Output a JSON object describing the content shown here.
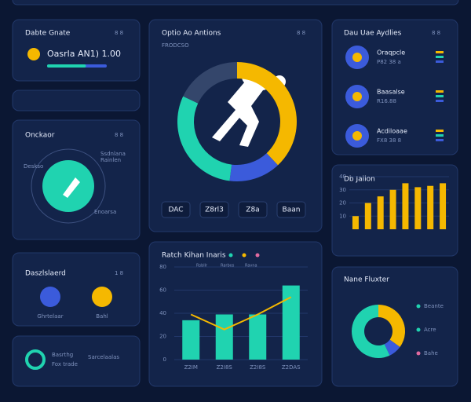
{
  "top_card": {
    "title": "Dabte Gnate",
    "code": "8 8",
    "value": "Oasrla AN1) 1.00",
    "progress": 65
  },
  "orbit_card": {
    "title": "Onckaor",
    "code": "8 8",
    "labels": [
      "Deskso",
      "Ssdnlana",
      "Rainlen",
      "Enoarsa"
    ]
  },
  "icons_card": {
    "title": "Daszlslaerd",
    "code": "1 8",
    "items": [
      "Ghrtelaar",
      "Bahl"
    ]
  },
  "footer_card": {
    "title": "Basrthg",
    "subtitle": "Fox trade",
    "tag": "Sarcelaalas"
  },
  "activity": {
    "title": "Optio Ao Antions",
    "subtitle": "FRODCSO",
    "code": "8 8",
    "segments": [
      {
        "color": "#f5b800",
        "value": 38
      },
      {
        "color": "#3b5bdb",
        "value": 14
      },
      {
        "color": "#20d3b0",
        "value": 30
      },
      {
        "color": "#34466b",
        "value": 18
      }
    ],
    "buttons": [
      "DAC",
      "Z8rl3",
      "Z8a",
      "Baan"
    ]
  },
  "trend": {
    "title": "Ratch Kihan Inaris",
    "legend": [
      "Rsbllr",
      "Rarbos",
      "Ravna"
    ],
    "categories": [
      "Z2IM",
      "Z2I8S",
      "Z2I8S",
      "Z2DAS"
    ],
    "bars": [
      34,
      39,
      39,
      64
    ],
    "line": [
      39,
      26,
      39,
      54
    ],
    "ylim": [
      0,
      80
    ],
    "yticks": [
      0,
      20,
      40,
      60,
      80
    ]
  },
  "right_list": {
    "title": "Dau Uae Aydlies",
    "code": "8 8",
    "items": [
      {
        "name": "Oraqpcle",
        "sub": "P82 38 a"
      },
      {
        "name": "Baasalse",
        "sub": "R16.88"
      },
      {
        "name": "Acdiloaae",
        "sub": "FX8 38 8"
      }
    ]
  },
  "mini_bars": {
    "title": "Db Jaiion",
    "values": [
      10,
      20,
      25,
      30,
      35,
      32,
      33,
      35
    ],
    "ylim": [
      0,
      40
    ],
    "yticks": [
      10,
      20,
      30,
      40
    ]
  },
  "share": {
    "title": "Nane Fluxter",
    "segments": [
      {
        "color": "#f5b800",
        "value": 35
      },
      {
        "color": "#3b5bdb",
        "value": 8
      },
      {
        "color": "#20d3b0",
        "value": 57
      }
    ],
    "legend": [
      "Beante",
      "Acre",
      "Bahe"
    ]
  }
}
